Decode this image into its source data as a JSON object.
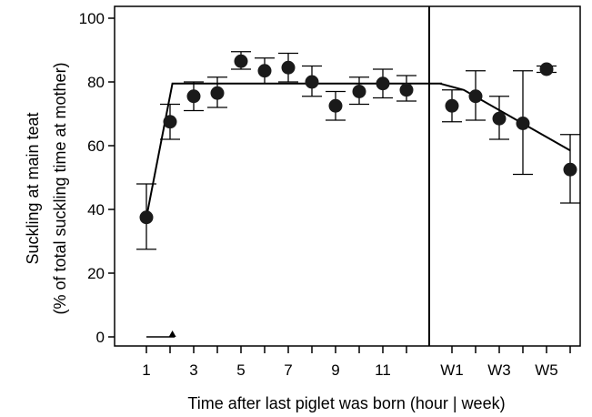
{
  "chart_data": {
    "type": "scatter",
    "title": "",
    "xlabel": "Time after last piglet was born (hour | week)",
    "ylabel": "Suckling at main teat",
    "ylabel_line2": "(% of total suckling time at mother)",
    "ylim": [
      0,
      100
    ],
    "yticks": [
      0,
      20,
      40,
      60,
      80,
      100
    ],
    "hour_panel": {
      "x_range": [
        0,
        13.5
      ],
      "xtick_labels": [
        "1",
        "3",
        "5",
        "7",
        "9",
        "11"
      ],
      "xtick_values": [
        1,
        3,
        5,
        7,
        9,
        11
      ],
      "minor_ticks": [
        2,
        4,
        6,
        8,
        10,
        12
      ],
      "points": [
        {
          "x": 1,
          "y": 37.5,
          "lo": 27.5,
          "hi": 48
        },
        {
          "x": 2,
          "y": 67.5,
          "lo": 62,
          "hi": 73
        },
        {
          "x": 3,
          "y": 75.5,
          "lo": 71,
          "hi": 80
        },
        {
          "x": 4,
          "y": 76.5,
          "lo": 72,
          "hi": 81.5
        },
        {
          "x": 5,
          "y": 86.5,
          "lo": 84,
          "hi": 89.5
        },
        {
          "x": 6,
          "y": 83.5,
          "lo": 79.5,
          "hi": 87.5
        },
        {
          "x": 7,
          "y": 84.5,
          "lo": 80,
          "hi": 89
        },
        {
          "x": 8,
          "y": 80,
          "lo": 75.5,
          "hi": 85
        },
        {
          "x": 9,
          "y": 72.5,
          "lo": 68,
          "hi": 77
        },
        {
          "x": 10,
          "y": 77,
          "lo": 73,
          "hi": 81.5
        },
        {
          "x": 11,
          "y": 79.5,
          "lo": 75,
          "hi": 84
        },
        {
          "x": 12,
          "y": 77.5,
          "lo": 74,
          "hi": 82
        }
      ],
      "fit_line": [
        [
          1,
          37.5
        ],
        [
          2.1,
          79.5
        ],
        [
          13.5,
          79.5
        ]
      ],
      "breakpoint_bar": {
        "x_from": 1,
        "x_to": 2.2,
        "y": 0,
        "marker_x": 2.1
      }
    },
    "week_panel": {
      "x_range": [
        0.5,
        6.3
      ],
      "xtick_labels": [
        "W1",
        "W3",
        "W5"
      ],
      "xtick_values": [
        1,
        3,
        5
      ],
      "minor_ticks": [
        2,
        4,
        6
      ],
      "points": [
        {
          "x": 1,
          "y": 72.5,
          "lo": 67.5,
          "hi": 77.5
        },
        {
          "x": 2,
          "y": 75.5,
          "lo": 68,
          "hi": 83.5
        },
        {
          "x": 3,
          "y": 68.5,
          "lo": 62,
          "hi": 75.5
        },
        {
          "x": 4,
          "y": 67,
          "lo": 51,
          "hi": 83.5
        },
        {
          "x": 5,
          "y": 84,
          "lo": 83,
          "hi": 85
        },
        {
          "x": 6,
          "y": 52.5,
          "lo": 42,
          "hi": 63.5
        }
      ],
      "fit_line": [
        [
          0.5,
          79.5
        ],
        [
          1.5,
          77.5
        ],
        [
          6,
          58.5
        ]
      ]
    }
  }
}
